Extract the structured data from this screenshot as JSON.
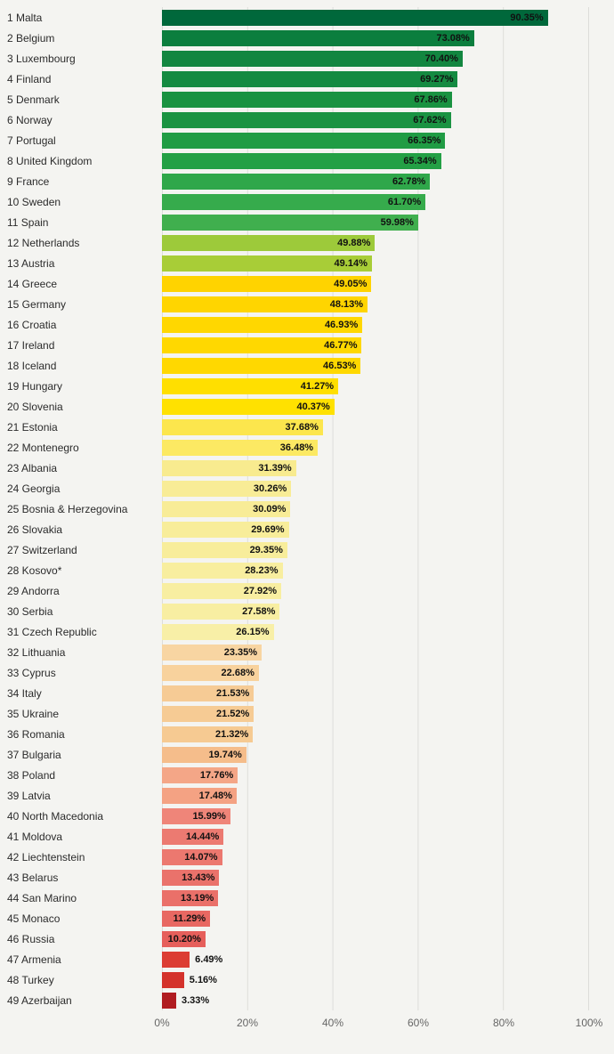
{
  "page": {
    "background": "#f4f4f1"
  },
  "chart_data": {
    "type": "bar",
    "orientation": "horizontal",
    "title": "",
    "xlabel": "",
    "ylabel": "",
    "xlim": [
      0,
      100
    ],
    "x_ticks": [
      "0%",
      "20%",
      "40%",
      "60%",
      "80%",
      "100%"
    ],
    "grid": true,
    "rows": [
      {
        "rank": 1,
        "country": "Malta",
        "value": 90.35,
        "label": "90.35%",
        "color": "#00683b"
      },
      {
        "rank": 2,
        "country": "Belgium",
        "value": 73.08,
        "label": "73.08%",
        "color": "#0b7e3e"
      },
      {
        "rank": 3,
        "country": "Luxembourg",
        "value": 70.4,
        "label": "70.40%",
        "color": "#128640"
      },
      {
        "rank": 4,
        "country": "Finland",
        "value": 69.27,
        "label": "69.27%",
        "color": "#148a41"
      },
      {
        "rank": 5,
        "country": "Denmark",
        "value": 67.86,
        "label": "67.86%",
        "color": "#199241"
      },
      {
        "rank": 6,
        "country": "Norway",
        "value": 67.62,
        "label": "67.62%",
        "color": "#1a9342"
      },
      {
        "rank": 7,
        "country": "Portugal",
        "value": 66.35,
        "label": "66.35%",
        "color": "#209c44"
      },
      {
        "rank": 8,
        "country": "United Kingdom",
        "value": 65.34,
        "label": "65.34%",
        "color": "#23a045"
      },
      {
        "rank": 9,
        "country": "France",
        "value": 62.78,
        "label": "62.78%",
        "color": "#2fa74a"
      },
      {
        "rank": 10,
        "country": "Sweden",
        "value": 61.7,
        "label": "61.70%",
        "color": "#36ab4c"
      },
      {
        "rank": 11,
        "country": "Spain",
        "value": 59.98,
        "label": "59.98%",
        "color": "#40af4e"
      },
      {
        "rank": 12,
        "country": "Netherlands",
        "value": 49.88,
        "label": "49.88%",
        "color": "#9dca3a"
      },
      {
        "rank": 13,
        "country": "Austria",
        "value": 49.14,
        "label": "49.14%",
        "color": "#a8cd37"
      },
      {
        "rank": 14,
        "country": "Greece",
        "value": 49.05,
        "label": "49.05%",
        "color": "#ffd300"
      },
      {
        "rank": 15,
        "country": "Germany",
        "value": 48.13,
        "label": "48.13%",
        "color": "#ffd500"
      },
      {
        "rank": 16,
        "country": "Croatia",
        "value": 46.93,
        "label": "46.93%",
        "color": "#ffd700"
      },
      {
        "rank": 17,
        "country": "Ireland",
        "value": 46.77,
        "label": "46.77%",
        "color": "#ffd800"
      },
      {
        "rank": 18,
        "country": "Iceland",
        "value": 46.53,
        "label": "46.53%",
        "color": "#ffd800"
      },
      {
        "rank": 19,
        "country": "Hungary",
        "value": 41.27,
        "label": "41.27%",
        "color": "#ffdf00"
      },
      {
        "rank": 20,
        "country": "Slovenia",
        "value": 40.37,
        "label": "40.37%",
        "color": "#ffe100"
      },
      {
        "rank": 21,
        "country": "Estonia",
        "value": 37.68,
        "label": "37.68%",
        "color": "#fce64d"
      },
      {
        "rank": 22,
        "country": "Montenegro",
        "value": 36.48,
        "label": "36.48%",
        "color": "#fce963"
      },
      {
        "rank": 23,
        "country": "Albania",
        "value": 31.39,
        "label": "31.39%",
        "color": "#f8eb8f"
      },
      {
        "rank": 24,
        "country": "Georgia",
        "value": 30.26,
        "label": "30.26%",
        "color": "#f8ec96"
      },
      {
        "rank": 25,
        "country": "Bosnia & Herzegovina",
        "value": 30.09,
        "label": "30.09%",
        "color": "#f8ec97"
      },
      {
        "rank": 26,
        "country": "Slovakia",
        "value": 29.69,
        "label": "29.69%",
        "color": "#f8ed9a"
      },
      {
        "rank": 27,
        "country": "Switzerland",
        "value": 29.35,
        "label": "29.35%",
        "color": "#f8ed9b"
      },
      {
        "rank": 28,
        "country": "Kosovo*",
        "value": 28.23,
        "label": "28.23%",
        "color": "#f8ee9f"
      },
      {
        "rank": 29,
        "country": "Andorra",
        "value": 27.92,
        "label": "27.92%",
        "color": "#f8eea1"
      },
      {
        "rank": 30,
        "country": "Serbia",
        "value": 27.58,
        "label": "27.58%",
        "color": "#f8eea2"
      },
      {
        "rank": 31,
        "country": "Czech Republic",
        "value": 26.15,
        "label": "26.15%",
        "color": "#f8efa7"
      },
      {
        "rank": 32,
        "country": "Lithuania",
        "value": 23.35,
        "label": "23.35%",
        "color": "#f8d5a2"
      },
      {
        "rank": 33,
        "country": "Cyprus",
        "value": 22.68,
        "label": "22.68%",
        "color": "#f8d29d"
      },
      {
        "rank": 34,
        "country": "Italy",
        "value": 21.53,
        "label": "21.53%",
        "color": "#f6cb95"
      },
      {
        "rank": 35,
        "country": "Ukraine",
        "value": 21.52,
        "label": "21.52%",
        "color": "#f6cb94"
      },
      {
        "rank": 36,
        "country": "Romania",
        "value": 21.32,
        "label": "21.32%",
        "color": "#f6ca92"
      },
      {
        "rank": 37,
        "country": "Bulgaria",
        "value": 19.74,
        "label": "19.74%",
        "color": "#f5bd8b"
      },
      {
        "rank": 38,
        "country": "Poland",
        "value": 17.76,
        "label": "17.76%",
        "color": "#f4a687"
      },
      {
        "rank": 39,
        "country": "Latvia",
        "value": 17.48,
        "label": "17.48%",
        "color": "#f4a283"
      },
      {
        "rank": 40,
        "country": "North Macedonia",
        "value": 15.99,
        "label": "15.99%",
        "color": "#ef8579"
      },
      {
        "rank": 41,
        "country": "Moldova",
        "value": 14.44,
        "label": "14.44%",
        "color": "#ec7a71"
      },
      {
        "rank": 42,
        "country": "Liechtenstein",
        "value": 14.07,
        "label": "14.07%",
        "color": "#ec786f"
      },
      {
        "rank": 43,
        "country": "Belarus",
        "value": 13.43,
        "label": "13.43%",
        "color": "#ea726b"
      },
      {
        "rank": 44,
        "country": "San Marino",
        "value": 13.19,
        "label": "13.19%",
        "color": "#ea7069"
      },
      {
        "rank": 45,
        "country": "Monaco",
        "value": 11.29,
        "label": "11.29%",
        "color": "#e86862"
      },
      {
        "rank": 46,
        "country": "Russia",
        "value": 10.2,
        "label": "10.20%",
        "color": "#e65f5b"
      },
      {
        "rank": 47,
        "country": "Armenia",
        "value": 6.49,
        "label": "6.49%",
        "color": "#dc3d33"
      },
      {
        "rank": 48,
        "country": "Turkey",
        "value": 5.16,
        "label": "5.16%",
        "color": "#d4322b"
      },
      {
        "rank": 49,
        "country": "Azerbaijan",
        "value": 3.33,
        "label": "3.33%",
        "color": "#b01c21"
      }
    ]
  }
}
